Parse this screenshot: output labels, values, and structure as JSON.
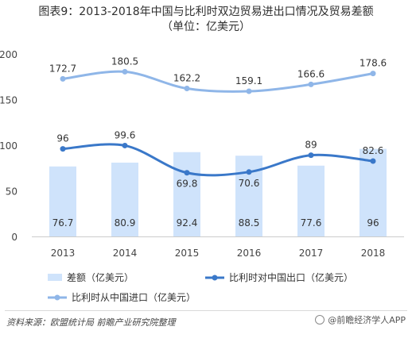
{
  "chart_data": {
    "type": "bar",
    "title": "图表9：2013-2018年中国与比利时双边贸易进出口情况及贸易差额",
    "subtitle": "（单位：亿美元）",
    "categories": [
      "2013",
      "2014",
      "2015",
      "2016",
      "2017",
      "2018"
    ],
    "ylim": [
      0,
      200
    ],
    "yticks": [
      "0",
      "50",
      "100",
      "150",
      "200"
    ],
    "grid": false,
    "legend_position": "bottom",
    "series": [
      {
        "name": "差额（亿美元）",
        "kind": "bar",
        "color": "#cfe3fb",
        "values": [
          76.7,
          80.9,
          92.4,
          88.5,
          77.6,
          96
        ],
        "labels": [
          "76.7",
          "80.9",
          "92.4",
          "88.5",
          "77.6",
          "96"
        ]
      },
      {
        "name": "比利时对中国出口（亿美元）",
        "kind": "line",
        "color": "#3a78c9",
        "values": [
          96,
          99.6,
          69.8,
          70.6,
          89,
          82.6
        ],
        "labels": [
          "96",
          "99.6",
          "69.8",
          "70.6",
          "89",
          "82.6"
        ]
      },
      {
        "name": "比利时从中国进口（亿美元）",
        "kind": "line",
        "color": "#8fb6e8",
        "values": [
          172.7,
          180.5,
          162.2,
          159.1,
          166.6,
          178.6
        ],
        "labels": [
          "172.7",
          "180.5",
          "162.2",
          "159.1",
          "166.6",
          "178.6"
        ]
      }
    ]
  },
  "footer": {
    "source": "资料来源：欧盟统计局 前瞻产业研究院整理",
    "logo_text": "@前瞻经济学人APP"
  }
}
